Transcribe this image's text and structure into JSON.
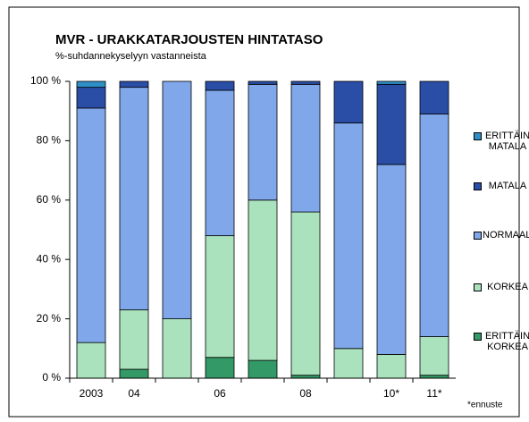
{
  "chart_data": {
    "type": "stacked_bar",
    "title": "MVR - URAKKATARJOUSTEN HINTATASO",
    "subtitle": "%-suhdannekyselyyn vastanneista",
    "annotation": "*ennuste",
    "categories": [
      "2003",
      "04",
      null,
      "06",
      null,
      "08",
      null,
      "10*",
      "11*"
    ],
    "series": [
      {
        "name": "ERITTÄIN KORKEA",
        "color": "#339966",
        "values": [
          0,
          3,
          0,
          7,
          6,
          1,
          0,
          0,
          1
        ]
      },
      {
        "name": "KORKEA",
        "color": "#a9e2bd",
        "values": [
          12,
          20,
          20,
          41,
          54,
          55,
          10,
          8,
          13
        ]
      },
      {
        "name": "NORMAALI",
        "color": "#7fa7ea",
        "values": [
          79,
          75,
          80,
          49,
          39,
          43,
          76,
          64,
          75
        ]
      },
      {
        "name": "MATALA",
        "color": "#2a4ea6",
        "values": [
          7,
          2,
          0,
          3,
          1,
          1,
          14,
          27,
          11
        ]
      },
      {
        "name": "ERITTÄIN MATALA",
        "color": "#2e8ec6",
        "values": [
          2,
          0,
          0,
          0,
          0,
          0,
          0,
          1,
          0
        ]
      }
    ],
    "ylim": [
      0,
      100
    ],
    "yticks": [
      {
        "value": 0,
        "label": "0 %"
      },
      {
        "value": 20,
        "label": "20 %"
      },
      {
        "value": 40,
        "label": "40 %"
      },
      {
        "value": 60,
        "label": "60 %"
      },
      {
        "value": 80,
        "label": "80 %"
      },
      {
        "value": 100,
        "label": "100 %"
      }
    ],
    "legend": "right"
  }
}
